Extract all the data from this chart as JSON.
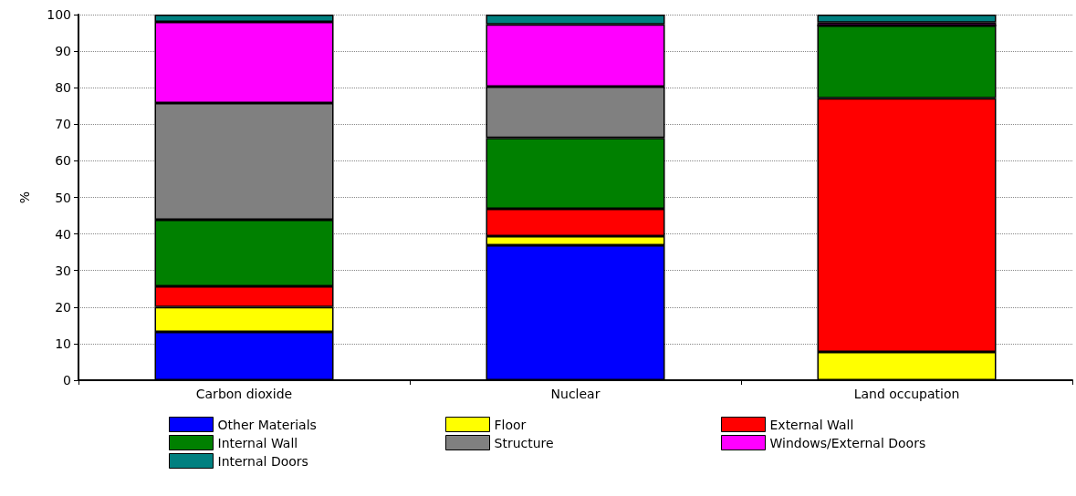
{
  "chart_data": {
    "type": "bar",
    "stacked": true,
    "ylabel": "%",
    "categories": [
      "Carbon dioxide",
      "Nuclear",
      "Land occupation"
    ],
    "ylim": [
      0,
      100
    ],
    "yticks": [
      0,
      10,
      20,
      30,
      40,
      50,
      60,
      70,
      80,
      90,
      100
    ],
    "grid": "y",
    "legend": "bottom",
    "series": [
      {
        "name": "Other Materials",
        "color": "#0000ff",
        "values": [
          13.2,
          36.9,
          0
        ]
      },
      {
        "name": "Floor",
        "color": "#ffff00",
        "values": [
          6.8,
          2.5,
          7.7
        ]
      },
      {
        "name": "External Wall",
        "color": "#ff0000",
        "values": [
          5.7,
          7.5,
          69.4
        ]
      },
      {
        "name": "Internal Wall",
        "color": "#008000",
        "values": [
          18.2,
          19.4,
          19.9
        ]
      },
      {
        "name": "Structure",
        "color": "#808080",
        "values": [
          31.9,
          14.0,
          0
        ]
      },
      {
        "name": "Windows/External Doors",
        "color": "#ff00ff",
        "values": [
          22.2,
          17.0,
          0.8
        ]
      },
      {
        "name": "Internal Doors",
        "color": "#008080",
        "values": [
          2.0,
          2.7,
          2.2
        ]
      }
    ]
  }
}
